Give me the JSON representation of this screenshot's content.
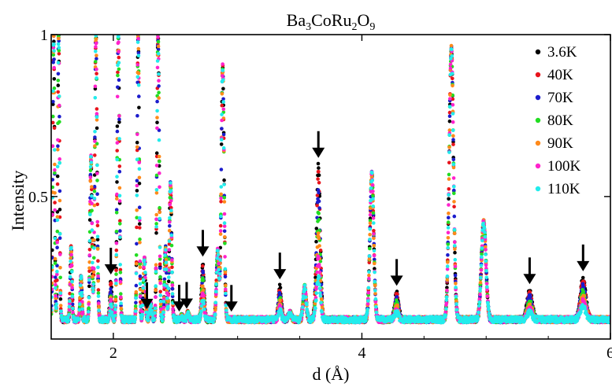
{
  "chart_data": {
    "type": "scatter",
    "title_main": "Ba",
    "title_sub1": "3",
    "title_mid": "CoRu",
    "title_sub2": "2",
    "title_end": "O",
    "title_sub3": "9",
    "xlabel": "d (Å)",
    "ylabel": "Intensity",
    "xlim": [
      1.5,
      6.0
    ],
    "ylim": [
      0.06,
      1.0
    ],
    "xticks": [
      2,
      4,
      6
    ],
    "xtick_labels": [
      "2",
      "4",
      "6"
    ],
    "yticks": [
      0.5,
      1.0
    ],
    "ytick_labels": [
      "0.5",
      "1"
    ],
    "legend_position": "top-right",
    "series": [
      {
        "name": "3.6K",
        "color": "#000000"
      },
      {
        "name": "40K",
        "color": "#e8141c"
      },
      {
        "name": "70K",
        "color": "#1c1ccc"
      },
      {
        "name": "80K",
        "color": "#22dd22"
      },
      {
        "name": "90K",
        "color": "#ff8a1a"
      },
      {
        "name": "100K",
        "color": "#ff22cc"
      },
      {
        "name": "110K",
        "color": "#22ecec"
      }
    ],
    "baseline": 0.12,
    "peaks": [
      {
        "d": 1.52,
        "height": 1.0,
        "width": 0.007
      },
      {
        "d": 1.56,
        "height": 1.0,
        "width": 0.007
      },
      {
        "d": 1.66,
        "height": 0.34,
        "width": 0.007
      },
      {
        "d": 1.74,
        "height": 0.25,
        "width": 0.007
      },
      {
        "d": 1.82,
        "height": 0.62,
        "width": 0.008
      },
      {
        "d": 1.86,
        "height": 1.0,
        "width": 0.009
      },
      {
        "d": 1.98,
        "height": 0.22,
        "width": 0.008
      },
      {
        "d": 2.04,
        "height": 1.0,
        "width": 0.009
      },
      {
        "d": 2.2,
        "height": 1.0,
        "width": 0.008
      },
      {
        "d": 2.25,
        "height": 0.31,
        "width": 0.008
      },
      {
        "d": 2.3,
        "height": 0.17,
        "width": 0.008
      },
      {
        "d": 2.36,
        "height": 1.0,
        "width": 0.009
      },
      {
        "d": 2.42,
        "height": 0.34,
        "width": 0.008
      },
      {
        "d": 2.46,
        "height": 0.54,
        "width": 0.009
      },
      {
        "d": 2.55,
        "height": 0.13,
        "width": 0.008
      },
      {
        "d": 2.6,
        "height": 0.14,
        "width": 0.008
      },
      {
        "d": 2.72,
        "height": 0.27,
        "width": 0.01
      },
      {
        "d": 2.84,
        "height": 0.33,
        "width": 0.01
      },
      {
        "d": 2.88,
        "height": 0.9,
        "width": 0.011
      },
      {
        "d": 2.97,
        "height": 0.12,
        "width": 0.01
      },
      {
        "d": 3.34,
        "height": 0.2,
        "width": 0.012
      },
      {
        "d": 3.42,
        "height": 0.14,
        "width": 0.012
      },
      {
        "d": 3.54,
        "height": 0.22,
        "width": 0.012
      },
      {
        "d": 3.65,
        "height": 0.57,
        "width": 0.015
      },
      {
        "d": 4.08,
        "height": 0.57,
        "width": 0.015
      },
      {
        "d": 4.28,
        "height": 0.18,
        "width": 0.015
      },
      {
        "d": 4.72,
        "height": 0.96,
        "width": 0.017
      },
      {
        "d": 4.98,
        "height": 0.42,
        "width": 0.018
      },
      {
        "d": 5.35,
        "height": 0.19,
        "width": 0.02
      },
      {
        "d": 5.78,
        "height": 0.22,
        "width": 0.022
      }
    ],
    "magnetic_peaks": [
      {
        "d": 1.98,
        "intensity": [
          0.235,
          0.228,
          0.215,
          0.2,
          0.188,
          0.176,
          0.165
        ]
      },
      {
        "d": 2.72,
        "intensity": [
          0.29,
          0.28,
          0.265,
          0.245,
          0.226,
          0.205,
          0.185
        ]
      },
      {
        "d": 3.34,
        "intensity": [
          0.22,
          0.212,
          0.2,
          0.185,
          0.172,
          0.16,
          0.148
        ]
      },
      {
        "d": 3.65,
        "intensity": [
          0.595,
          0.57,
          0.52,
          0.45,
          0.38,
          0.31,
          0.25
        ]
      },
      {
        "d": 4.28,
        "intensity": [
          0.2,
          0.195,
          0.185,
          0.172,
          0.16,
          0.15,
          0.14
        ]
      },
      {
        "d": 5.35,
        "intensity": [
          0.205,
          0.198,
          0.188,
          0.175,
          0.163,
          0.152,
          0.142
        ]
      },
      {
        "d": 5.78,
        "intensity": [
          0.245,
          0.236,
          0.222,
          0.205,
          0.19,
          0.175,
          0.16
        ]
      }
    ],
    "arrows_at": [
      1.98,
      2.27,
      2.53,
      2.59,
      2.72,
      2.95,
      3.34,
      3.65,
      4.28,
      5.35,
      5.78
    ]
  }
}
